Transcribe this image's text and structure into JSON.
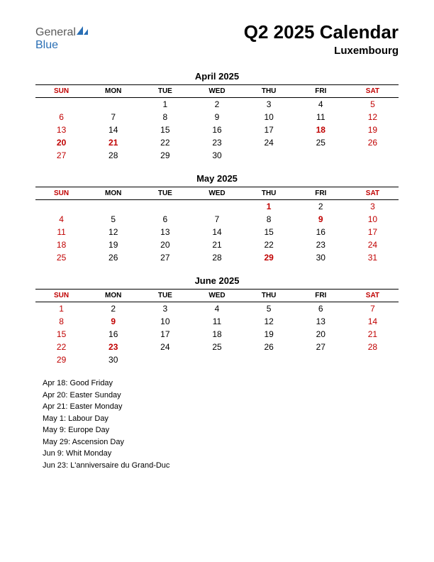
{
  "logo": {
    "text1": "General",
    "text2": "Blue",
    "icon_color": "#2a6fb5",
    "text1_color": "#5a5a5a",
    "text2_color": "#2a6fb5"
  },
  "title": "Q2 2025 Calendar",
  "subtitle": "Luxembourg",
  "day_headers": [
    "SUN",
    "MON",
    "TUE",
    "WED",
    "THU",
    "FRI",
    "SAT"
  ],
  "weekend_indices": [
    0,
    6
  ],
  "colors": {
    "weekend": "#c00000",
    "holiday": "#c00000",
    "text": "#000000",
    "background": "#ffffff",
    "rule": "#000000"
  },
  "typography": {
    "title_fontsize": 26,
    "subtitle_fontsize": 15,
    "month_title_fontsize": 13,
    "header_fontsize": 10,
    "day_fontsize": 12,
    "holiday_fontsize": 11,
    "font_family": "Arial"
  },
  "months": [
    {
      "title": "April 2025",
      "weeks": [
        [
          null,
          null,
          {
            "n": 1
          },
          {
            "n": 2
          },
          {
            "n": 3
          },
          {
            "n": 4
          },
          {
            "n": 5,
            "red": true
          }
        ],
        [
          {
            "n": 6,
            "red": true
          },
          {
            "n": 7
          },
          {
            "n": 8
          },
          {
            "n": 9
          },
          {
            "n": 10
          },
          {
            "n": 11
          },
          {
            "n": 12,
            "red": true
          }
        ],
        [
          {
            "n": 13,
            "red": true
          },
          {
            "n": 14
          },
          {
            "n": 15
          },
          {
            "n": 16
          },
          {
            "n": 17
          },
          {
            "n": 18,
            "red": true,
            "bold": true
          },
          {
            "n": 19,
            "red": true
          }
        ],
        [
          {
            "n": 20,
            "red": true,
            "bold": true
          },
          {
            "n": 21,
            "red": true,
            "bold": true
          },
          {
            "n": 22
          },
          {
            "n": 23
          },
          {
            "n": 24
          },
          {
            "n": 25
          },
          {
            "n": 26,
            "red": true
          }
        ],
        [
          {
            "n": 27,
            "red": true
          },
          {
            "n": 28
          },
          {
            "n": 29
          },
          {
            "n": 30
          },
          null,
          null,
          null
        ]
      ]
    },
    {
      "title": "May 2025",
      "weeks": [
        [
          null,
          null,
          null,
          null,
          {
            "n": 1,
            "red": true,
            "bold": true
          },
          {
            "n": 2
          },
          {
            "n": 3,
            "red": true
          }
        ],
        [
          {
            "n": 4,
            "red": true
          },
          {
            "n": 5
          },
          {
            "n": 6
          },
          {
            "n": 7
          },
          {
            "n": 8
          },
          {
            "n": 9,
            "red": true,
            "bold": true
          },
          {
            "n": 10,
            "red": true
          }
        ],
        [
          {
            "n": 11,
            "red": true
          },
          {
            "n": 12
          },
          {
            "n": 13
          },
          {
            "n": 14
          },
          {
            "n": 15
          },
          {
            "n": 16
          },
          {
            "n": 17,
            "red": true
          }
        ],
        [
          {
            "n": 18,
            "red": true
          },
          {
            "n": 19
          },
          {
            "n": 20
          },
          {
            "n": 21
          },
          {
            "n": 22
          },
          {
            "n": 23
          },
          {
            "n": 24,
            "red": true
          }
        ],
        [
          {
            "n": 25,
            "red": true
          },
          {
            "n": 26
          },
          {
            "n": 27
          },
          {
            "n": 28
          },
          {
            "n": 29,
            "red": true,
            "bold": true
          },
          {
            "n": 30
          },
          {
            "n": 31,
            "red": true
          }
        ]
      ]
    },
    {
      "title": "June 2025",
      "weeks": [
        [
          {
            "n": 1,
            "red": true
          },
          {
            "n": 2
          },
          {
            "n": 3
          },
          {
            "n": 4
          },
          {
            "n": 5
          },
          {
            "n": 6
          },
          {
            "n": 7,
            "red": true
          }
        ],
        [
          {
            "n": 8,
            "red": true
          },
          {
            "n": 9,
            "red": true,
            "bold": true
          },
          {
            "n": 10
          },
          {
            "n": 11
          },
          {
            "n": 12
          },
          {
            "n": 13
          },
          {
            "n": 14,
            "red": true
          }
        ],
        [
          {
            "n": 15,
            "red": true
          },
          {
            "n": 16
          },
          {
            "n": 17
          },
          {
            "n": 18
          },
          {
            "n": 19
          },
          {
            "n": 20
          },
          {
            "n": 21,
            "red": true
          }
        ],
        [
          {
            "n": 22,
            "red": true
          },
          {
            "n": 23,
            "red": true,
            "bold": true
          },
          {
            "n": 24
          },
          {
            "n": 25
          },
          {
            "n": 26
          },
          {
            "n": 27
          },
          {
            "n": 28,
            "red": true
          }
        ],
        [
          {
            "n": 29,
            "red": true
          },
          {
            "n": 30
          },
          null,
          null,
          null,
          null,
          null
        ]
      ]
    }
  ],
  "holidays": [
    "Apr 18: Good Friday",
    "Apr 20: Easter Sunday",
    "Apr 21: Easter Monday",
    "May 1: Labour Day",
    "May 9: Europe Day",
    "May 29: Ascension Day",
    "Jun 9: Whit Monday",
    "Jun 23: L'anniversaire du Grand-Duc"
  ]
}
